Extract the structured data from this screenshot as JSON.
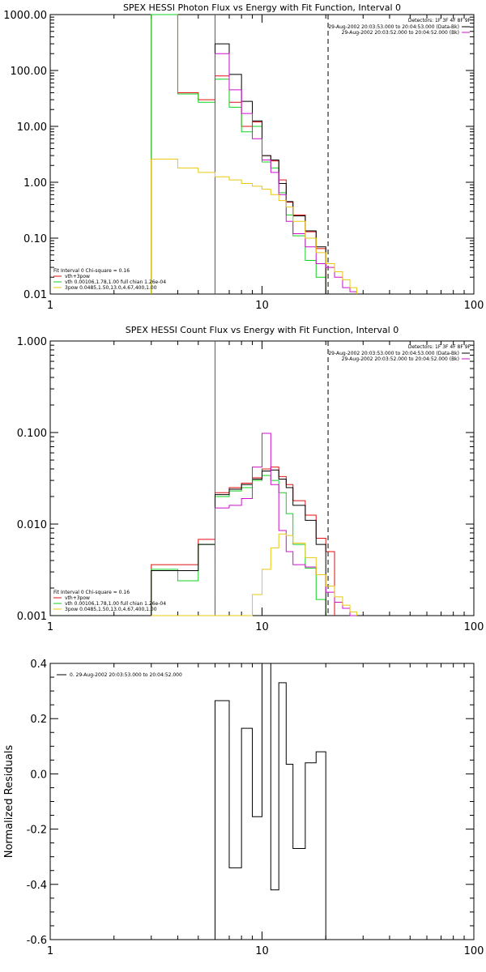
{
  "colors": {
    "black": "#000000",
    "red": "#e01010",
    "green": "#10d020",
    "magenta": "#cc10cc",
    "yellow": "#e8c810"
  },
  "chart_data": [
    {
      "type": "line",
      "title": "SPEX HESSI Photon Flux vs Energy with Fit Function, Interval 0",
      "xlabel": "",
      "ylabel": "",
      "xscale": "log",
      "yscale": "log",
      "xlim": [
        1,
        100
      ],
      "ylim": [
        0.01,
        1000
      ],
      "xticks": [
        {
          "v": 1,
          "label": "1"
        },
        {
          "v": 10,
          "label": "10"
        },
        {
          "v": 100,
          "label": "100"
        }
      ],
      "yticks": [
        {
          "v": 0.01,
          "label": "0.01"
        },
        {
          "v": 0.1,
          "label": "0.10"
        },
        {
          "v": 1,
          "label": "1.00"
        },
        {
          "v": 10,
          "label": "10.00"
        },
        {
          "v": 100,
          "label": "100.00"
        },
        {
          "v": 1000,
          "label": "1000.00"
        }
      ],
      "vlines": [
        {
          "x": 6.0,
          "style": "dotted",
          "color": "#000000"
        },
        {
          "x": 6.0,
          "style": "solid",
          "color": "#cc10cc"
        },
        {
          "x": 20.5,
          "style": "dashed",
          "color": "#000000"
        }
      ],
      "header_text": [
        "Detectors: 1F 3F 4F 8F 9F"
      ],
      "legend_top": [
        {
          "text": "29-Aug-2002 20:03:53.000 to 20:04:53.000 (Data-Bk)",
          "color": "#000000"
        },
        {
          "text": "29-Aug-2002 20:03:52.000 to 20:04:52.000 (Bk)",
          "color": "#cc10cc"
        }
      ],
      "legend_bottom": [
        {
          "text": "Fit Interval 0   Chi-square = 0.16",
          "color": null
        },
        {
          "text": "vth+3pow",
          "color": "#e01010"
        },
        {
          "text": "vth 0.00106,1.78,1.00  full chian 1.26e-04",
          "color": "#10d020"
        },
        {
          "text": "3pow 0.0485,1.50,13.0,4.67,400,1.00",
          "color": "#e8c810"
        }
      ],
      "series": [
        {
          "name": "vth+3pow",
          "color": "#e01010",
          "edges": [
            3,
            4,
            5,
            6,
            7,
            8,
            9,
            10,
            11,
            12,
            13,
            14,
            16,
            18,
            20
          ],
          "values": [
            1000,
            40,
            30,
            80,
            27,
            10,
            12,
            3,
            2.4,
            1.1,
            0.44,
            0.26,
            0.13,
            0.065
          ]
        },
        {
          "name": "vth",
          "color": "#10d020",
          "edges": [
            3,
            4,
            5,
            6,
            7,
            8,
            9,
            10,
            11,
            12,
            13,
            14,
            16,
            18,
            20
          ],
          "values": [
            1000,
            38,
            27,
            70,
            22,
            8,
            10,
            2.3,
            1.8,
            0.65,
            0.26,
            0.11,
            0.04,
            0.02
          ]
        },
        {
          "name": "Data-Bk",
          "color": "#000000",
          "edges": [
            6,
            7,
            8,
            9,
            10,
            11,
            12,
            13,
            14,
            16,
            18,
            20
          ],
          "values": [
            300,
            85,
            28,
            12.5,
            3,
            2.5,
            0.95,
            0.45,
            0.25,
            0.135,
            0.07
          ]
        },
        {
          "name": "Bk",
          "color": "#cc10cc",
          "edges": [
            6,
            7,
            8,
            9,
            10,
            11,
            12,
            13,
            14,
            16,
            18,
            20,
            22,
            24,
            26,
            28
          ],
          "values": [
            200,
            45,
            17,
            6,
            2.5,
            1.5,
            0.6,
            0.2,
            0.12,
            0.07,
            0.035,
            0.03,
            0.02,
            0.013,
            0.011
          ]
        },
        {
          "name": "3pow",
          "color": "#e8c810",
          "edges": [
            3,
            4,
            5,
            6,
            7,
            8,
            9,
            10,
            11,
            12,
            13,
            14,
            16,
            18,
            20,
            22,
            24,
            26,
            28
          ],
          "values": [
            2.6,
            1.8,
            1.5,
            1.25,
            1.1,
            0.95,
            0.85,
            0.75,
            0.6,
            0.47,
            0.36,
            0.2,
            0.1,
            0.055,
            0.035,
            0.025,
            0.018,
            0.013
          ]
        }
      ]
    },
    {
      "type": "line",
      "title": "SPEX HESSI Count Flux vs Energy with Fit Function, Interval 0",
      "xlabel": "",
      "ylabel": "",
      "xscale": "log",
      "yscale": "log",
      "xlim": [
        1,
        100
      ],
      "ylim": [
        0.001,
        1.0
      ],
      "xticks": [
        {
          "v": 1,
          "label": "1"
        },
        {
          "v": 10,
          "label": "10"
        },
        {
          "v": 100,
          "label": "100"
        }
      ],
      "yticks": [
        {
          "v": 0.001,
          "label": "0.001"
        },
        {
          "v": 0.01,
          "label": "0.010"
        },
        {
          "v": 0.1,
          "label": "0.100"
        },
        {
          "v": 1,
          "label": "1.000"
        }
      ],
      "vlines": [
        {
          "x": 6.0,
          "style": "dotted",
          "color": "#000000"
        },
        {
          "x": 6.0,
          "style": "solid",
          "color": "#cc10cc"
        },
        {
          "x": 20.5,
          "style": "dashed",
          "color": "#000000"
        }
      ],
      "header_text": [
        "Detectors: 1F 3F 4F 8F 9F"
      ],
      "legend_top": [
        {
          "text": "29-Aug-2002 20:03:53.000 to 20:04:53.000 (Data-Bk)",
          "color": "#000000"
        },
        {
          "text": "29-Aug-2002 20:03:52.000 to 20:04:52.000 (Bk)",
          "color": "#cc10cc"
        }
      ],
      "legend_bottom": [
        {
          "text": "Fit Interval 0   Chi-square = 0.16",
          "color": null
        },
        {
          "text": "vth+3pow",
          "color": "#e01010"
        },
        {
          "text": "vth 0.00106,1.78,1.00  full chian 1.26e-04",
          "color": "#10d020"
        },
        {
          "text": "3pow 0.0485,1.50,13.0,4.67,400,1.00",
          "color": "#e8c810"
        }
      ],
      "series": [
        {
          "name": "vth+3pow",
          "color": "#e01010",
          "edges": [
            3,
            4,
            5,
            6,
            7,
            8,
            9,
            10,
            11,
            12,
            13,
            14,
            16,
            18,
            20,
            22
          ],
          "values": [
            0.0036,
            0.0036,
            0.0068,
            0.022,
            0.025,
            0.028,
            0.032,
            0.04,
            0.042,
            0.033,
            0.027,
            0.018,
            0.0125,
            0.007,
            0.005
          ]
        },
        {
          "name": "vth",
          "color": "#10d020",
          "edges": [
            3,
            4,
            5,
            6,
            7,
            8,
            9,
            10,
            11,
            12,
            13,
            14,
            16,
            18,
            20
          ],
          "values": [
            0.0032,
            0.0024,
            0.006,
            0.02,
            0.023,
            0.025,
            0.03,
            0.034,
            0.03,
            0.022,
            0.013,
            0.006,
            0.0033,
            0.0015
          ]
        },
        {
          "name": "Data-Bk",
          "color": "#000000",
          "edges": [
            3,
            4,
            5,
            6,
            7,
            8,
            9,
            10,
            11,
            12,
            13,
            14,
            16,
            18,
            20
          ],
          "values": [
            0.0031,
            0.0031,
            0.006,
            0.021,
            0.024,
            0.027,
            0.031,
            0.038,
            0.039,
            0.031,
            0.025,
            0.016,
            0.011,
            0.006
          ]
        },
        {
          "name": "Bk",
          "color": "#cc10cc",
          "edges": [
            6,
            7,
            8,
            9,
            10,
            11,
            12,
            13,
            14,
            16,
            18,
            20,
            22,
            24,
            26,
            28
          ],
          "values": [
            0.015,
            0.016,
            0.019,
            0.042,
            0.098,
            0.027,
            0.0085,
            0.005,
            0.0036,
            0.0034,
            0.0028,
            0.0018,
            0.0014,
            0.0012,
            0.001
          ]
        },
        {
          "name": "3pow",
          "color": "#e8c810",
          "edges": [
            3,
            4,
            5,
            6,
            7,
            8,
            9,
            10,
            11,
            12,
            13,
            14,
            16,
            18,
            20,
            22,
            24,
            26,
            28
          ],
          "values": [
            0.001,
            0.001,
            0.00095,
            0.0009,
            0.0009,
            0.001,
            0.0017,
            0.0032,
            0.0055,
            0.0078,
            0.0075,
            0.0062,
            0.0043,
            0.0028,
            0.0021,
            0.0016,
            0.0013,
            0.0011
          ]
        }
      ]
    },
    {
      "type": "line",
      "title": "",
      "xlabel": "",
      "ylabel": "Normalized Residuals",
      "xscale": "log",
      "yscale": "linear",
      "xlim": [
        1,
        100
      ],
      "ylim": [
        -0.6,
        0.4
      ],
      "xticks": [
        {
          "v": 1,
          "label": "1"
        },
        {
          "v": 10,
          "label": "10"
        },
        {
          "v": 100,
          "label": "100"
        }
      ],
      "yticks": [
        {
          "v": -0.6,
          "label": "-0.6"
        },
        {
          "v": -0.4,
          "label": "-0.4"
        },
        {
          "v": -0.2,
          "label": "-0.2"
        },
        {
          "v": 0.0,
          "label": "0.0"
        },
        {
          "v": 0.2,
          "label": "0.2"
        },
        {
          "v": 0.4,
          "label": "0.4"
        }
      ],
      "legend_top_left": [
        {
          "text": "0. 29-Aug-2002 20:03:53.000 to 20:04:52.000",
          "color": "#000000"
        }
      ],
      "series": [
        {
          "name": "residuals",
          "color": "#000000",
          "edges": [
            6,
            7,
            8,
            9,
            10,
            11,
            12,
            13,
            14,
            16,
            18,
            20
          ],
          "values": [
            0.265,
            -0.34,
            0.165,
            -0.155,
            0.4,
            -0.42,
            0.33,
            0.035,
            -0.27,
            0.04,
            0.08
          ]
        }
      ]
    }
  ]
}
